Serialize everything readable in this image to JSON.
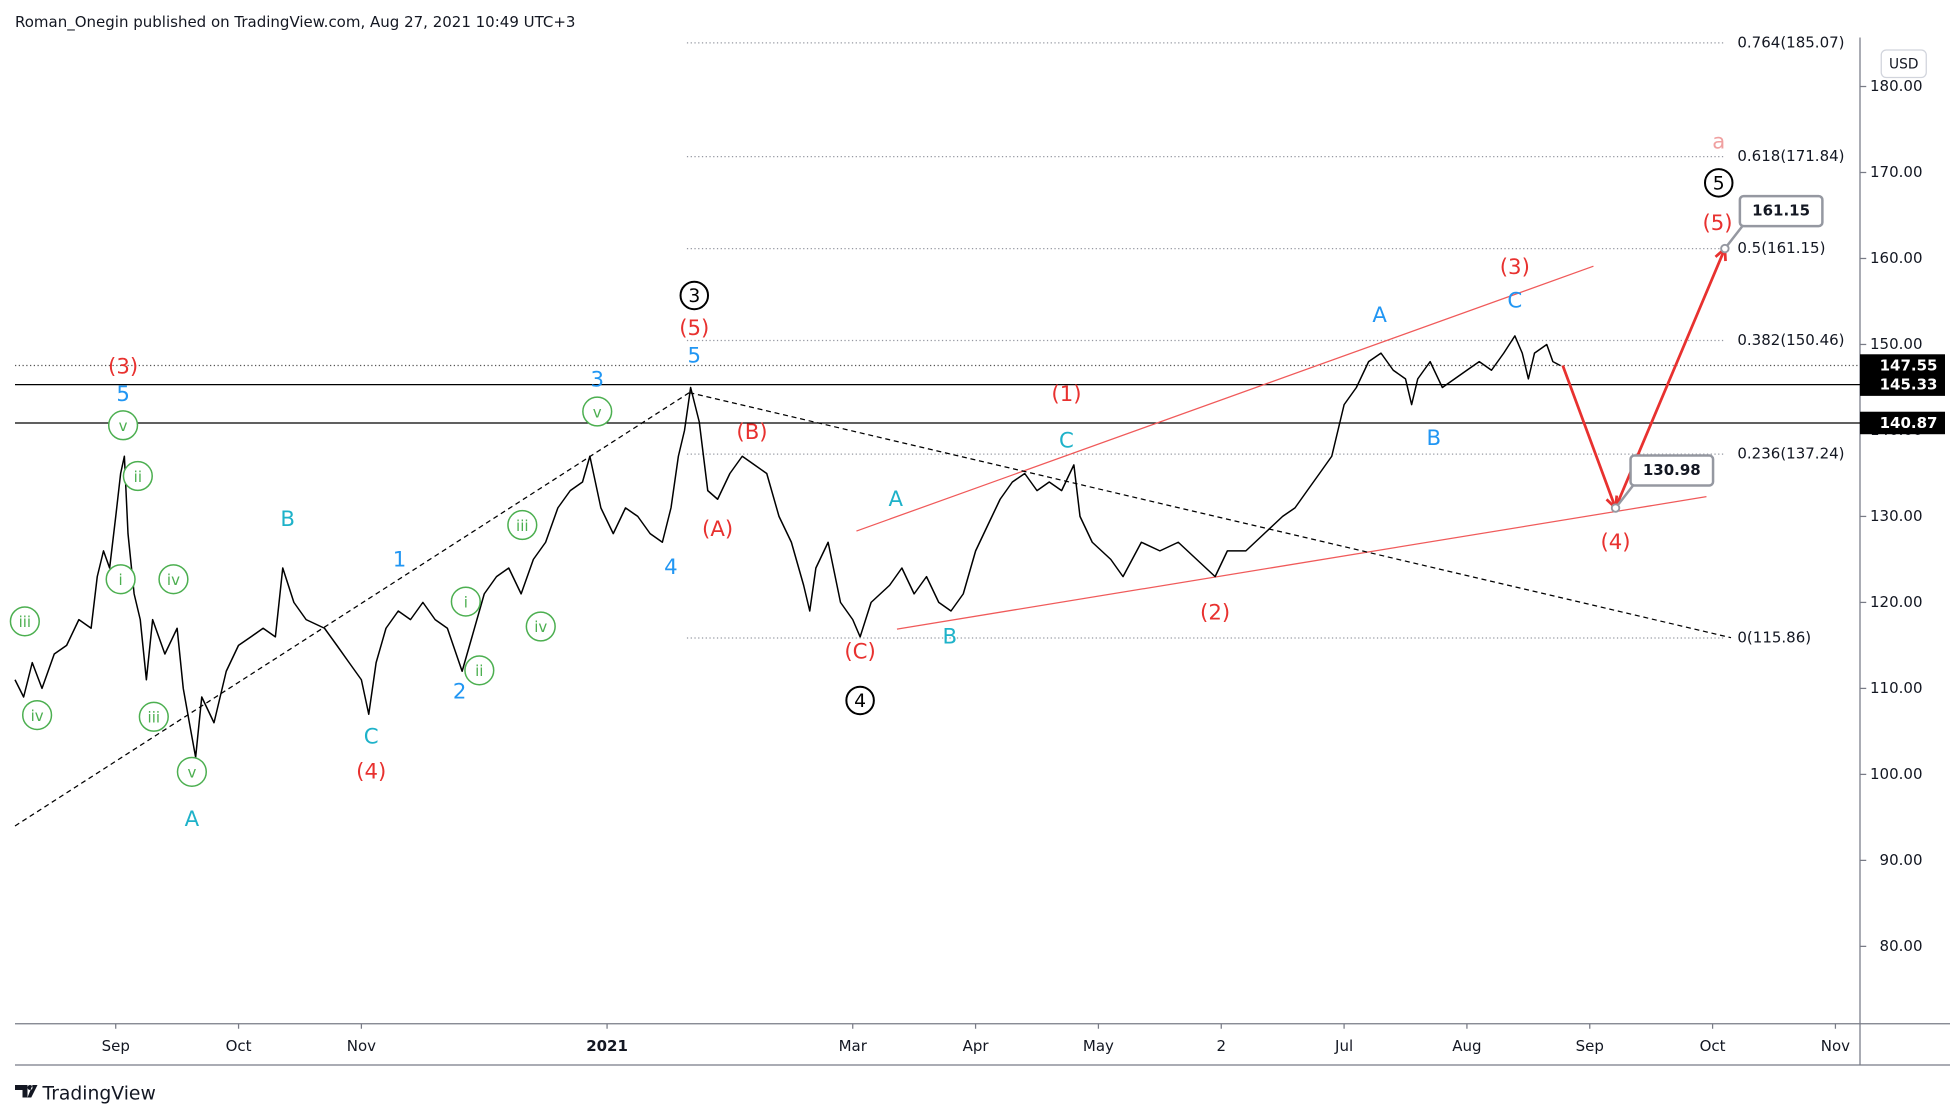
{
  "chart_data": {
    "type": "line",
    "header": "Roman_Onegin published on TradingView.com, Aug 27, 2021 10:49 UTC+3",
    "footer": "TradingView",
    "currency": "USD",
    "xlim": [
      -4.82,
      10.2
    ],
    "ylim": [
      71,
      185.7
    ],
    "xticks": [
      {
        "value": -4,
        "label": "Sep"
      },
      {
        "value": -3,
        "label": "Oct"
      },
      {
        "value": -2,
        "label": "Nov"
      },
      {
        "value": 0,
        "label": "2021"
      },
      {
        "value": 2,
        "label": "Mar"
      },
      {
        "value": 3,
        "label": "Apr"
      },
      {
        "value": 4,
        "label": "May"
      },
      {
        "value": 5,
        "label": "2"
      },
      {
        "value": 6,
        "label": "Jul"
      },
      {
        "value": 7,
        "label": "Aug"
      },
      {
        "value": 8,
        "label": "Sep"
      },
      {
        "value": 9,
        "label": "Oct"
      },
      {
        "value": 10,
        "label": "Nov"
      }
    ],
    "yticks": [
      {
        "value": 80,
        "label": "80.00"
      },
      {
        "value": 90,
        "label": "90.00"
      },
      {
        "value": 100,
        "label": "100.00"
      },
      {
        "value": 110,
        "label": "110.00"
      },
      {
        "value": 120,
        "label": "120.00"
      },
      {
        "value": 130,
        "label": "130.00"
      },
      {
        "value": 140,
        "label": "140.00"
      },
      {
        "value": 150,
        "label": "150.00"
      },
      {
        "value": 160,
        "label": "160.00"
      },
      {
        "value": 170,
        "label": "170.00"
      },
      {
        "value": 180,
        "label": "180.00"
      }
    ],
    "color": "#000000",
    "x": [
      -4.82,
      -4.75,
      -4.68,
      -4.6,
      -4.5,
      -4.4,
      -4.3,
      -4.2,
      -4.15,
      -4.1,
      -4.05,
      -4.0,
      -3.96,
      -3.93,
      -3.9,
      -3.85,
      -3.8,
      -3.75,
      -3.7,
      -3.6,
      -3.5,
      -3.45,
      -3.4,
      -3.35,
      -3.3,
      -3.2,
      -3.1,
      -3.0,
      -2.9,
      -2.8,
      -2.7,
      -2.64,
      -2.55,
      -2.45,
      -2.3,
      -2.2,
      -2.1,
      -2.0,
      -1.94,
      -1.88,
      -1.8,
      -1.7,
      -1.6,
      -1.5,
      -1.4,
      -1.3,
      -1.18,
      -1.1,
      -1.0,
      -0.9,
      -0.8,
      -0.7,
      -0.6,
      -0.5,
      -0.4,
      -0.3,
      -0.2,
      -0.14,
      -0.05,
      0.05,
      0.15,
      0.25,
      0.35,
      0.45,
      0.52,
      0.58,
      0.63,
      0.68,
      0.75,
      0.82,
      0.9,
      1.0,
      1.1,
      1.2,
      1.3,
      1.4,
      1.5,
      1.6,
      1.65,
      1.7,
      1.8,
      1.9,
      2.0,
      2.06,
      2.15,
      2.3,
      2.4,
      2.5,
      2.6,
      2.7,
      2.8,
      2.9,
      3.0,
      3.1,
      3.2,
      3.3,
      3.4,
      3.5,
      3.6,
      3.7,
      3.8,
      3.85,
      3.95,
      4.1,
      4.2,
      4.35,
      4.5,
      4.65,
      4.8,
      4.95,
      5.05,
      5.2,
      5.35,
      5.5,
      5.6,
      5.7,
      5.8,
      5.9,
      6.0,
      6.1,
      6.2,
      6.3,
      6.4,
      6.5,
      6.55,
      6.6,
      6.7,
      6.8,
      6.9,
      7.0,
      7.1,
      7.2,
      7.3,
      7.39,
      7.45,
      7.5,
      7.55,
      7.65,
      7.7,
      7.76
    ],
    "values": [
      111,
      109,
      113,
      110,
      114,
      115,
      118,
      117,
      123,
      126,
      124,
      130,
      135,
      137,
      128,
      121,
      118,
      111,
      118,
      114,
      117,
      110,
      106,
      102,
      109,
      106,
      112,
      115,
      116,
      117,
      116,
      124,
      120,
      118,
      117,
      115,
      113,
      111,
      107,
      113,
      117,
      119,
      118,
      120,
      118,
      117,
      112,
      116,
      121,
      123,
      124,
      121,
      125,
      127,
      131,
      133,
      134,
      137,
      131,
      128,
      131,
      130,
      128,
      127,
      131,
      137,
      140,
      145,
      141,
      133,
      132,
      135,
      137,
      136,
      135,
      130,
      127,
      122,
      119,
      124,
      127,
      120,
      118,
      116,
      120,
      122,
      124,
      121,
      123,
      120,
      119,
      121,
      126,
      129,
      132,
      134,
      135,
      133,
      134,
      133,
      136,
      130,
      127,
      125,
      123,
      127,
      126,
      127,
      125,
      123,
      126,
      126,
      128,
      130,
      131,
      133,
      135,
      137,
      143,
      145,
      148,
      149,
      147,
      146,
      143,
      146,
      148,
      145,
      146,
      147,
      148,
      147,
      149,
      151,
      149,
      146,
      149,
      150,
      148,
      147.55
    ],
    "levels": [
      {
        "value": 145.33,
        "color": "#000000"
      },
      {
        "value": 140.87,
        "color": "#000000"
      }
    ],
    "current_price": 147.55,
    "badges": [
      147.55,
      145.33,
      140.87
    ],
    "fib": {
      "x": [
        0.65,
        9.1
      ],
      "levels": [
        {
          "value": 185.07,
          "label": "0.764(185.07)"
        },
        {
          "value": 171.84,
          "label": "0.618(171.84)"
        },
        {
          "value": 161.15,
          "label": "0.5(161.15)"
        },
        {
          "value": 150.46,
          "label": "0.382(150.46)"
        },
        {
          "value": 137.24,
          "label": "0.236(137.24)"
        },
        {
          "value": 115.86,
          "label": "0(115.86)"
        }
      ]
    },
    "trendlines": [
      {
        "x": [
          2.03,
          8.03
        ],
        "values": [
          128.3,
          159.1
        ],
        "color": "#f05a5a",
        "dashed": false
      },
      {
        "x": [
          2.36,
          8.95
        ],
        "values": [
          116.9,
          132.3
        ],
        "color": "#f05a5a",
        "dashed": false
      },
      {
        "x": [
          -4.82,
          0.67
        ],
        "values": [
          94,
          144.4
        ],
        "color": "#000000",
        "dashed": true
      },
      {
        "x": [
          0.67,
          9.15
        ],
        "values": [
          144.4,
          115.9
        ],
        "color": "#000000",
        "dashed": true
      }
    ],
    "projection": {
      "x": [
        7.78,
        8.21,
        9.1
      ],
      "values": [
        147.55,
        130.98,
        161.15
      ],
      "color": "#e8312f"
    },
    "labels": [
      {
        "text": "(3)",
        "x": -3.94,
        "y": 147.3,
        "color": "#e8312f",
        "circled": false
      },
      {
        "text": "5",
        "x": -3.94,
        "y": 144.1,
        "color": "#2196f3",
        "circled": false
      },
      {
        "text": "v",
        "x": -3.94,
        "y": 140.6,
        "color": "#4caf50",
        "circled": true
      },
      {
        "text": "ii",
        "x": -3.82,
        "y": 134.7,
        "color": "#4caf50",
        "circled": true
      },
      {
        "text": "i",
        "x": -3.96,
        "y": 122.7,
        "color": "#4caf50",
        "circled": true
      },
      {
        "text": "iv",
        "x": -3.53,
        "y": 122.7,
        "color": "#4caf50",
        "circled": true
      },
      {
        "text": "iii",
        "x": -3.69,
        "y": 106.7,
        "color": "#4caf50",
        "circled": true
      },
      {
        "text": "v",
        "x": -3.38,
        "y": 100.3,
        "color": "#4caf50",
        "circled": true
      },
      {
        "text": "A",
        "x": -3.38,
        "y": 94.7,
        "color": "#1eb2c9",
        "circled": false
      },
      {
        "text": "iii",
        "x": -4.74,
        "y": 117.8,
        "color": "#4caf50",
        "circled": true
      },
      {
        "text": "iv",
        "x": -4.64,
        "y": 106.9,
        "color": "#4caf50",
        "circled": true
      },
      {
        "text": "B",
        "x": -2.6,
        "y": 129.6,
        "color": "#1eb2c9",
        "circled": false
      },
      {
        "text": "C",
        "x": -1.92,
        "y": 104.3,
        "color": "#1eb2c9",
        "circled": false
      },
      {
        "text": "(4)",
        "x": -1.92,
        "y": 100.2,
        "color": "#e8312f",
        "circled": false
      },
      {
        "text": "1",
        "x": -1.69,
        "y": 124.9,
        "color": "#2196f3",
        "circled": false
      },
      {
        "text": "i",
        "x": -1.15,
        "y": 120.1,
        "color": "#4caf50",
        "circled": true
      },
      {
        "text": "ii",
        "x": -1.04,
        "y": 112.1,
        "color": "#4caf50",
        "circled": true
      },
      {
        "text": "2",
        "x": -1.2,
        "y": 109.5,
        "color": "#2196f3",
        "circled": false
      },
      {
        "text": "iii",
        "x": -0.69,
        "y": 129.0,
        "color": "#4caf50",
        "circled": true
      },
      {
        "text": "iv",
        "x": -0.54,
        "y": 117.2,
        "color": "#4caf50",
        "circled": true
      },
      {
        "text": "3",
        "x": -0.08,
        "y": 145.8,
        "color": "#2196f3",
        "circled": false
      },
      {
        "text": "v",
        "x": -0.08,
        "y": 142.2,
        "color": "#4caf50",
        "circled": true
      },
      {
        "text": "4",
        "x": 0.52,
        "y": 124.0,
        "color": "#2196f3",
        "circled": false
      },
      {
        "text": "3",
        "x": 0.71,
        "y": 155.7,
        "color": "#000000",
        "circled": true
      },
      {
        "text": "(5)",
        "x": 0.71,
        "y": 151.8,
        "color": "#e8312f",
        "circled": false
      },
      {
        "text": "5",
        "x": 0.71,
        "y": 148.6,
        "color": "#2196f3",
        "circled": false
      },
      {
        "text": "(B)",
        "x": 1.18,
        "y": 139.7,
        "color": "#e8312f",
        "circled": false
      },
      {
        "text": "(A)",
        "x": 0.9,
        "y": 128.4,
        "color": "#e8312f",
        "circled": false
      },
      {
        "text": "(C)",
        "x": 2.06,
        "y": 114.2,
        "color": "#e8312f",
        "circled": false
      },
      {
        "text": "4",
        "x": 2.06,
        "y": 108.6,
        "color": "#000000",
        "circled": true
      },
      {
        "text": "A",
        "x": 2.35,
        "y": 131.9,
        "color": "#1eb2c9",
        "circled": false
      },
      {
        "text": "B",
        "x": 2.79,
        "y": 115.9,
        "color": "#1eb2c9",
        "circled": false
      },
      {
        "text": "(1)",
        "x": 3.74,
        "y": 144.1,
        "color": "#e8312f",
        "circled": false
      },
      {
        "text": "C",
        "x": 3.74,
        "y": 138.7,
        "color": "#1eb2c9",
        "circled": false
      },
      {
        "text": "(2)",
        "x": 4.95,
        "y": 118.7,
        "color": "#e8312f",
        "circled": false
      },
      {
        "text": "A",
        "x": 6.29,
        "y": 153.3,
        "color": "#2196f3",
        "circled": false
      },
      {
        "text": "B",
        "x": 6.73,
        "y": 139.0,
        "color": "#2196f3",
        "circled": false
      },
      {
        "text": "(3)",
        "x": 7.39,
        "y": 158.9,
        "color": "#e8312f",
        "circled": false
      },
      {
        "text": "C",
        "x": 7.39,
        "y": 155.0,
        "color": "#2196f3",
        "circled": false
      },
      {
        "text": "(4)",
        "x": 8.21,
        "y": 126.9,
        "color": "#e8312f",
        "circled": false
      },
      {
        "text": "(5)",
        "x": 9.04,
        "y": 164.0,
        "color": "#e8312f",
        "circled": false
      },
      {
        "text": "5",
        "x": 9.05,
        "y": 168.8,
        "color": "#000000",
        "circled": true
      },
      {
        "text": "a",
        "x": 9.05,
        "y": 173.5,
        "color": "#f0a0a0",
        "circled": false
      }
    ]
  }
}
